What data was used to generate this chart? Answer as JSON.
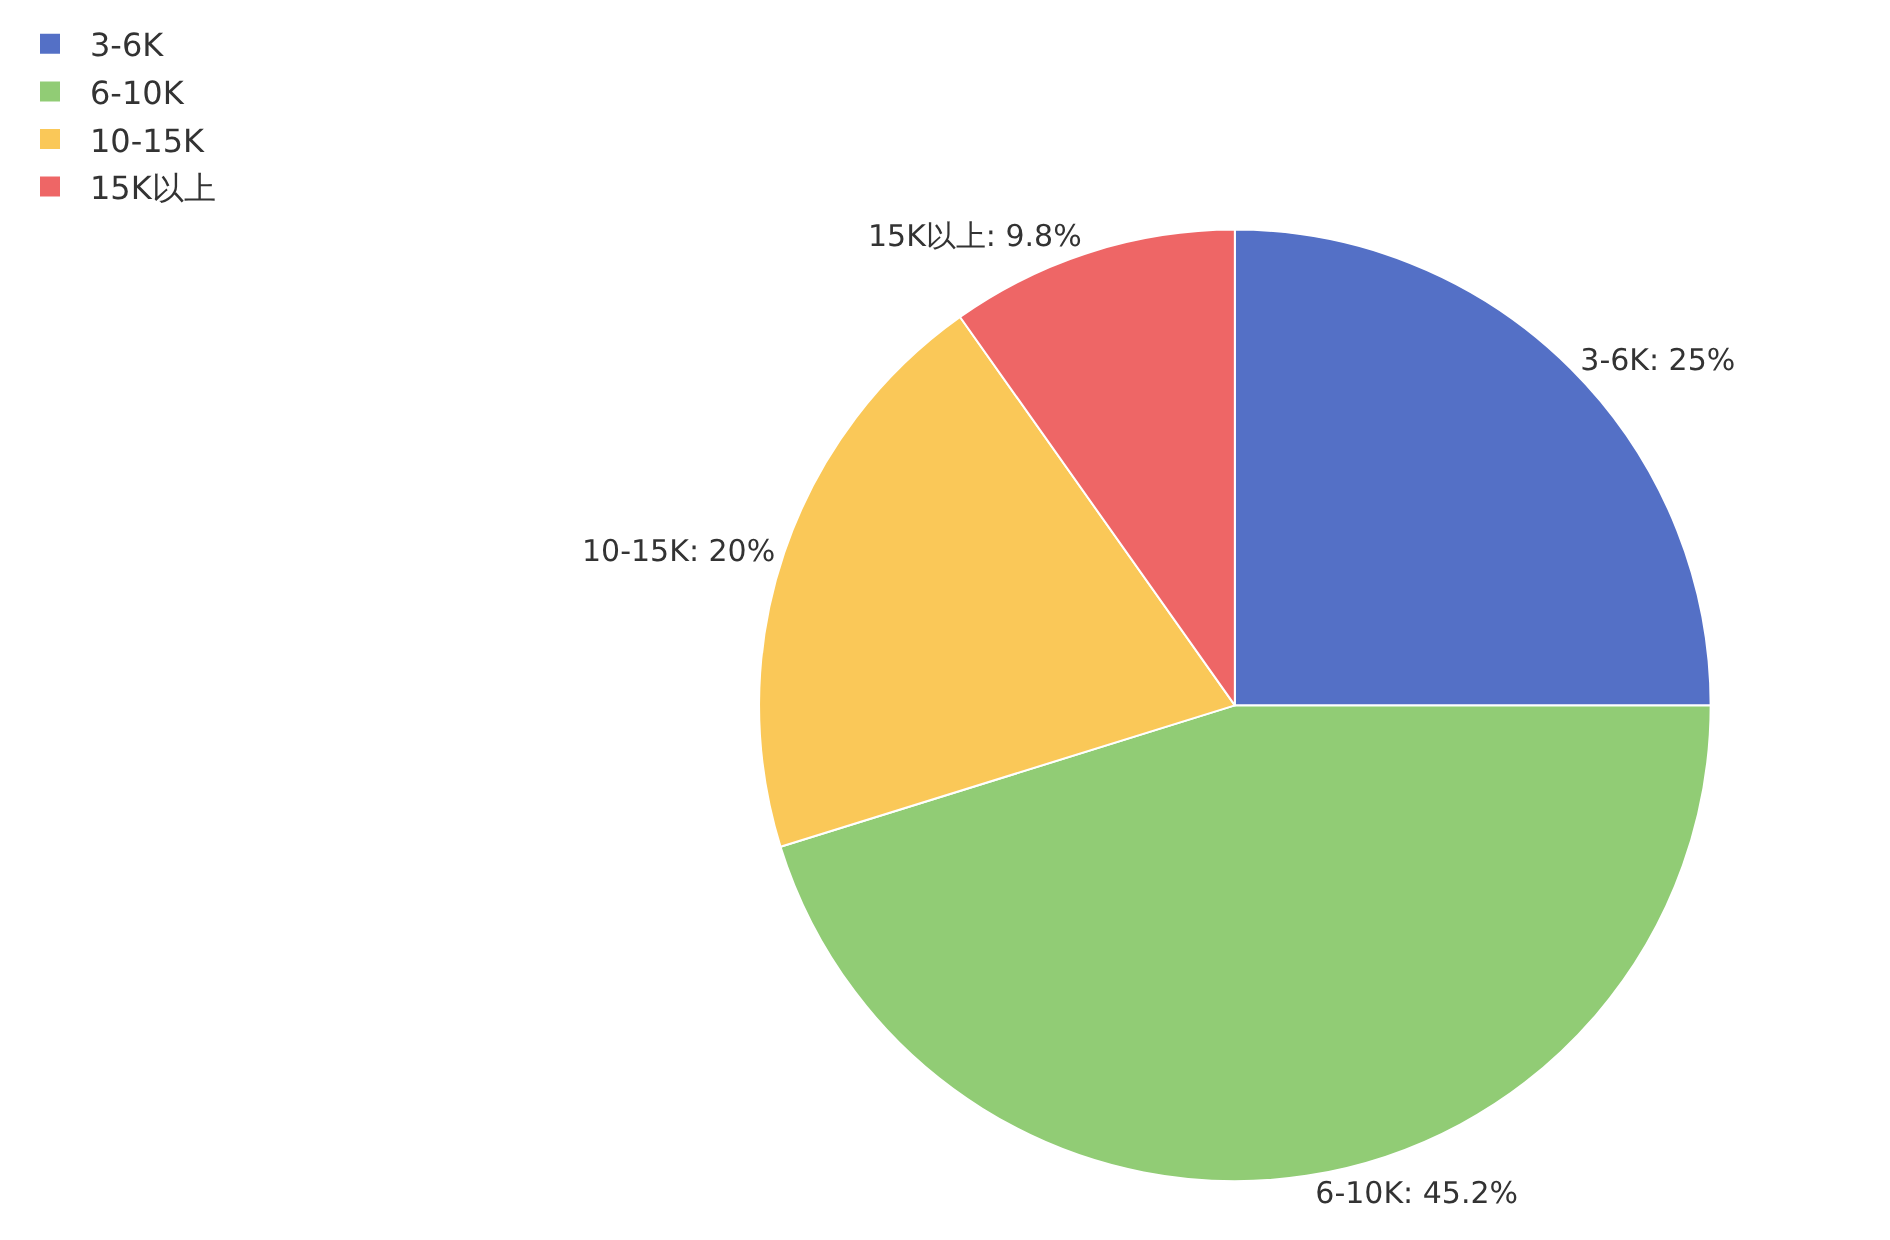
{
  "chart_data": {
    "type": "pie",
    "categories": [
      "3-6K",
      "6-10K",
      "10-15K",
      "15K以上"
    ],
    "values": [
      25,
      45.2,
      20,
      9.8
    ],
    "colors": [
      "#5470c6",
      "#91cc75",
      "#fac858",
      "#ee6666"
    ],
    "value_labels": [
      "3-6K: 25%",
      "6-10K: 45.2%",
      "10-15K: 20%",
      "15K以上: 9.8%"
    ],
    "legend": "top left"
  }
}
